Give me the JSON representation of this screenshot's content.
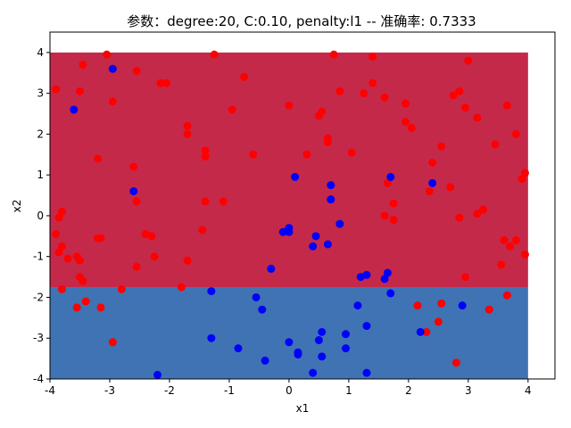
{
  "chart_data": {
    "type": "scatter",
    "title": "参数：degree:20, C:0.10, penalty:l1 -- 准确率: 0.7333",
    "xlabel": "x1",
    "ylabel": "x2",
    "xlim": [
      -4,
      4.45
    ],
    "ylim": [
      -4,
      4.5
    ],
    "xticks": [
      -4,
      -3,
      -2,
      -1,
      0,
      1,
      2,
      3,
      4
    ],
    "yticks": [
      -4,
      -3,
      -2,
      -1,
      0,
      1,
      2,
      3,
      4
    ],
    "grid": false,
    "legend": "none",
    "decision_regions": [
      {
        "class": "red",
        "x_range": [
          -4,
          4
        ],
        "y_range": [
          -1.75,
          4
        ],
        "color": "#c4294a"
      },
      {
        "class": "blue",
        "x_range": [
          -4,
          4
        ],
        "y_range": [
          -4,
          -1.75
        ],
        "color": "#3f73b4"
      }
    ],
    "series": [
      {
        "color": "#ff0000",
        "points": [
          [
            -3.9,
            3.1
          ],
          [
            -3.45,
            3.7
          ],
          [
            -3.5,
            3.05
          ],
          [
            -3.05,
            3.95
          ],
          [
            -2.95,
            2.8
          ],
          [
            -2.55,
            3.55
          ],
          [
            -2.15,
            3.25
          ],
          [
            -2.05,
            3.25
          ],
          [
            -1.25,
            3.95
          ],
          [
            -0.75,
            3.4
          ],
          [
            0.75,
            3.95
          ],
          [
            1.4,
            3.9
          ],
          [
            3.0,
            3.8
          ],
          [
            -1.7,
            2.2
          ],
          [
            -1.7,
            2.0
          ],
          [
            -0.95,
            2.6
          ],
          [
            0.0,
            2.7
          ],
          [
            0.5,
            2.45
          ],
          [
            0.55,
            2.55
          ],
          [
            0.65,
            1.9
          ],
          [
            0.65,
            1.8
          ],
          [
            0.85,
            3.05
          ],
          [
            1.25,
            3.0
          ],
          [
            1.4,
            3.25
          ],
          [
            1.6,
            2.9
          ],
          [
            1.95,
            2.75
          ],
          [
            1.95,
            2.3
          ],
          [
            2.05,
            2.15
          ],
          [
            2.55,
            1.7
          ],
          [
            2.75,
            2.95
          ],
          [
            2.85,
            3.05
          ],
          [
            2.95,
            2.65
          ],
          [
            3.15,
            2.4
          ],
          [
            3.65,
            2.7
          ],
          [
            3.8,
            2.0
          ],
          [
            3.45,
            1.75
          ],
          [
            -3.2,
            1.4
          ],
          [
            -2.6,
            1.2
          ],
          [
            -1.4,
            1.45
          ],
          [
            -1.4,
            1.6
          ],
          [
            -0.6,
            1.5
          ],
          [
            0.3,
            1.5
          ],
          [
            1.05,
            1.55
          ],
          [
            2.4,
            1.3
          ],
          [
            3.95,
            1.05
          ],
          [
            3.9,
            0.9
          ],
          [
            -3.8,
            0.1
          ],
          [
            -3.85,
            -0.05
          ],
          [
            -2.55,
            0.35
          ],
          [
            -1.4,
            0.35
          ],
          [
            -1.1,
            0.35
          ],
          [
            1.65,
            0.8
          ],
          [
            1.75,
            0.3
          ],
          [
            2.35,
            0.6
          ],
          [
            2.7,
            0.7
          ],
          [
            3.15,
            0.05
          ],
          [
            3.25,
            0.15
          ],
          [
            1.6,
            0.0
          ],
          [
            1.75,
            -0.1
          ],
          [
            2.85,
            -0.05
          ],
          [
            -3.9,
            -0.45
          ],
          [
            -3.8,
            -0.75
          ],
          [
            -3.85,
            -0.9
          ],
          [
            -3.15,
            -0.55
          ],
          [
            -3.2,
            -0.55
          ],
          [
            -2.4,
            -0.45
          ],
          [
            -2.3,
            -0.5
          ],
          [
            -1.45,
            -0.35
          ],
          [
            3.6,
            -0.6
          ],
          [
            3.8,
            -0.6
          ],
          [
            3.7,
            -0.75
          ],
          [
            -3.7,
            -1.05
          ],
          [
            -3.55,
            -1.0
          ],
          [
            -3.5,
            -1.1
          ],
          [
            -3.5,
            -1.5
          ],
          [
            -3.45,
            -1.6
          ],
          [
            -2.25,
            -1.0
          ],
          [
            -2.55,
            -1.25
          ],
          [
            -1.7,
            -1.1
          ],
          [
            3.95,
            -0.95
          ],
          [
            3.55,
            -1.2
          ],
          [
            2.95,
            -1.5
          ],
          [
            -3.8,
            -1.8
          ],
          [
            -3.55,
            -2.25
          ],
          [
            -3.4,
            -2.1
          ],
          [
            -3.15,
            -2.25
          ],
          [
            -2.8,
            -1.8
          ],
          [
            -1.8,
            -1.75
          ],
          [
            2.15,
            -2.2
          ],
          [
            2.55,
            -2.15
          ],
          [
            3.65,
            -1.95
          ],
          [
            3.35,
            -2.3
          ],
          [
            2.5,
            -2.6
          ],
          [
            -2.95,
            -3.1
          ],
          [
            2.3,
            -2.85
          ],
          [
            2.8,
            -3.6
          ]
        ]
      },
      {
        "color": "#0000ff",
        "points": [
          [
            -2.95,
            3.6
          ],
          [
            -3.6,
            2.6
          ],
          [
            -2.6,
            0.6
          ],
          [
            0.1,
            0.95
          ],
          [
            0.7,
            0.75
          ],
          [
            1.7,
            0.95
          ],
          [
            0.7,
            0.4
          ],
          [
            2.4,
            0.8
          ],
          [
            0.0,
            -0.3
          ],
          [
            0.0,
            -0.4
          ],
          [
            -0.1,
            -0.4
          ],
          [
            0.45,
            -0.5
          ],
          [
            0.4,
            -0.75
          ],
          [
            0.65,
            -0.7
          ],
          [
            0.85,
            -0.2
          ],
          [
            -0.3,
            -1.3
          ],
          [
            1.2,
            -1.5
          ],
          [
            1.3,
            -1.45
          ],
          [
            1.6,
            -1.55
          ],
          [
            1.65,
            -1.4
          ],
          [
            1.7,
            -1.9
          ],
          [
            -1.3,
            -1.85
          ],
          [
            -0.55,
            -2.0
          ],
          [
            -0.45,
            -2.3
          ],
          [
            1.15,
            -2.2
          ],
          [
            -1.3,
            -3.0
          ],
          [
            -0.85,
            -3.25
          ],
          [
            -0.4,
            -3.55
          ],
          [
            0.0,
            -3.1
          ],
          [
            0.15,
            -3.35
          ],
          [
            0.15,
            -3.4
          ],
          [
            0.5,
            -3.05
          ],
          [
            0.55,
            -2.85
          ],
          [
            0.55,
            -3.45
          ],
          [
            0.95,
            -2.9
          ],
          [
            0.95,
            -3.25
          ],
          [
            1.3,
            -2.7
          ],
          [
            2.2,
            -2.85
          ],
          [
            2.9,
            -2.2
          ],
          [
            -2.2,
            -3.9
          ],
          [
            0.4,
            -3.85
          ],
          [
            1.3,
            -3.85
          ]
        ]
      }
    ]
  }
}
